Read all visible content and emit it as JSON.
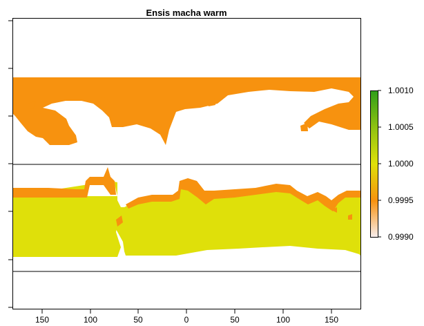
{
  "title": "Ensis macha warm",
  "colors": {
    "background": "#ffffff",
    "orange": "#f7920f",
    "yellow": "#dfe00a",
    "frame": "#000000"
  },
  "x_ticks": [
    "150",
    "100",
    "50",
    "0",
    "50",
    "100",
    "150"
  ],
  "legend": {
    "labels": [
      "1.0010",
      "1.0005",
      "1.0000",
      "0.9995",
      "0.9990"
    ],
    "gradient": [
      "#2f9e1a",
      "#8fc212",
      "#dfe00a",
      "#f7920f",
      "#f7eeee"
    ]
  },
  "chart_data": {
    "type": "heatmap",
    "title": "Ensis macha warm",
    "legend_range": [
      0.999,
      1.001
    ],
    "legend_ticks": [
      0.999,
      0.9995,
      1.0,
      1.0005,
      1.001
    ]
  }
}
